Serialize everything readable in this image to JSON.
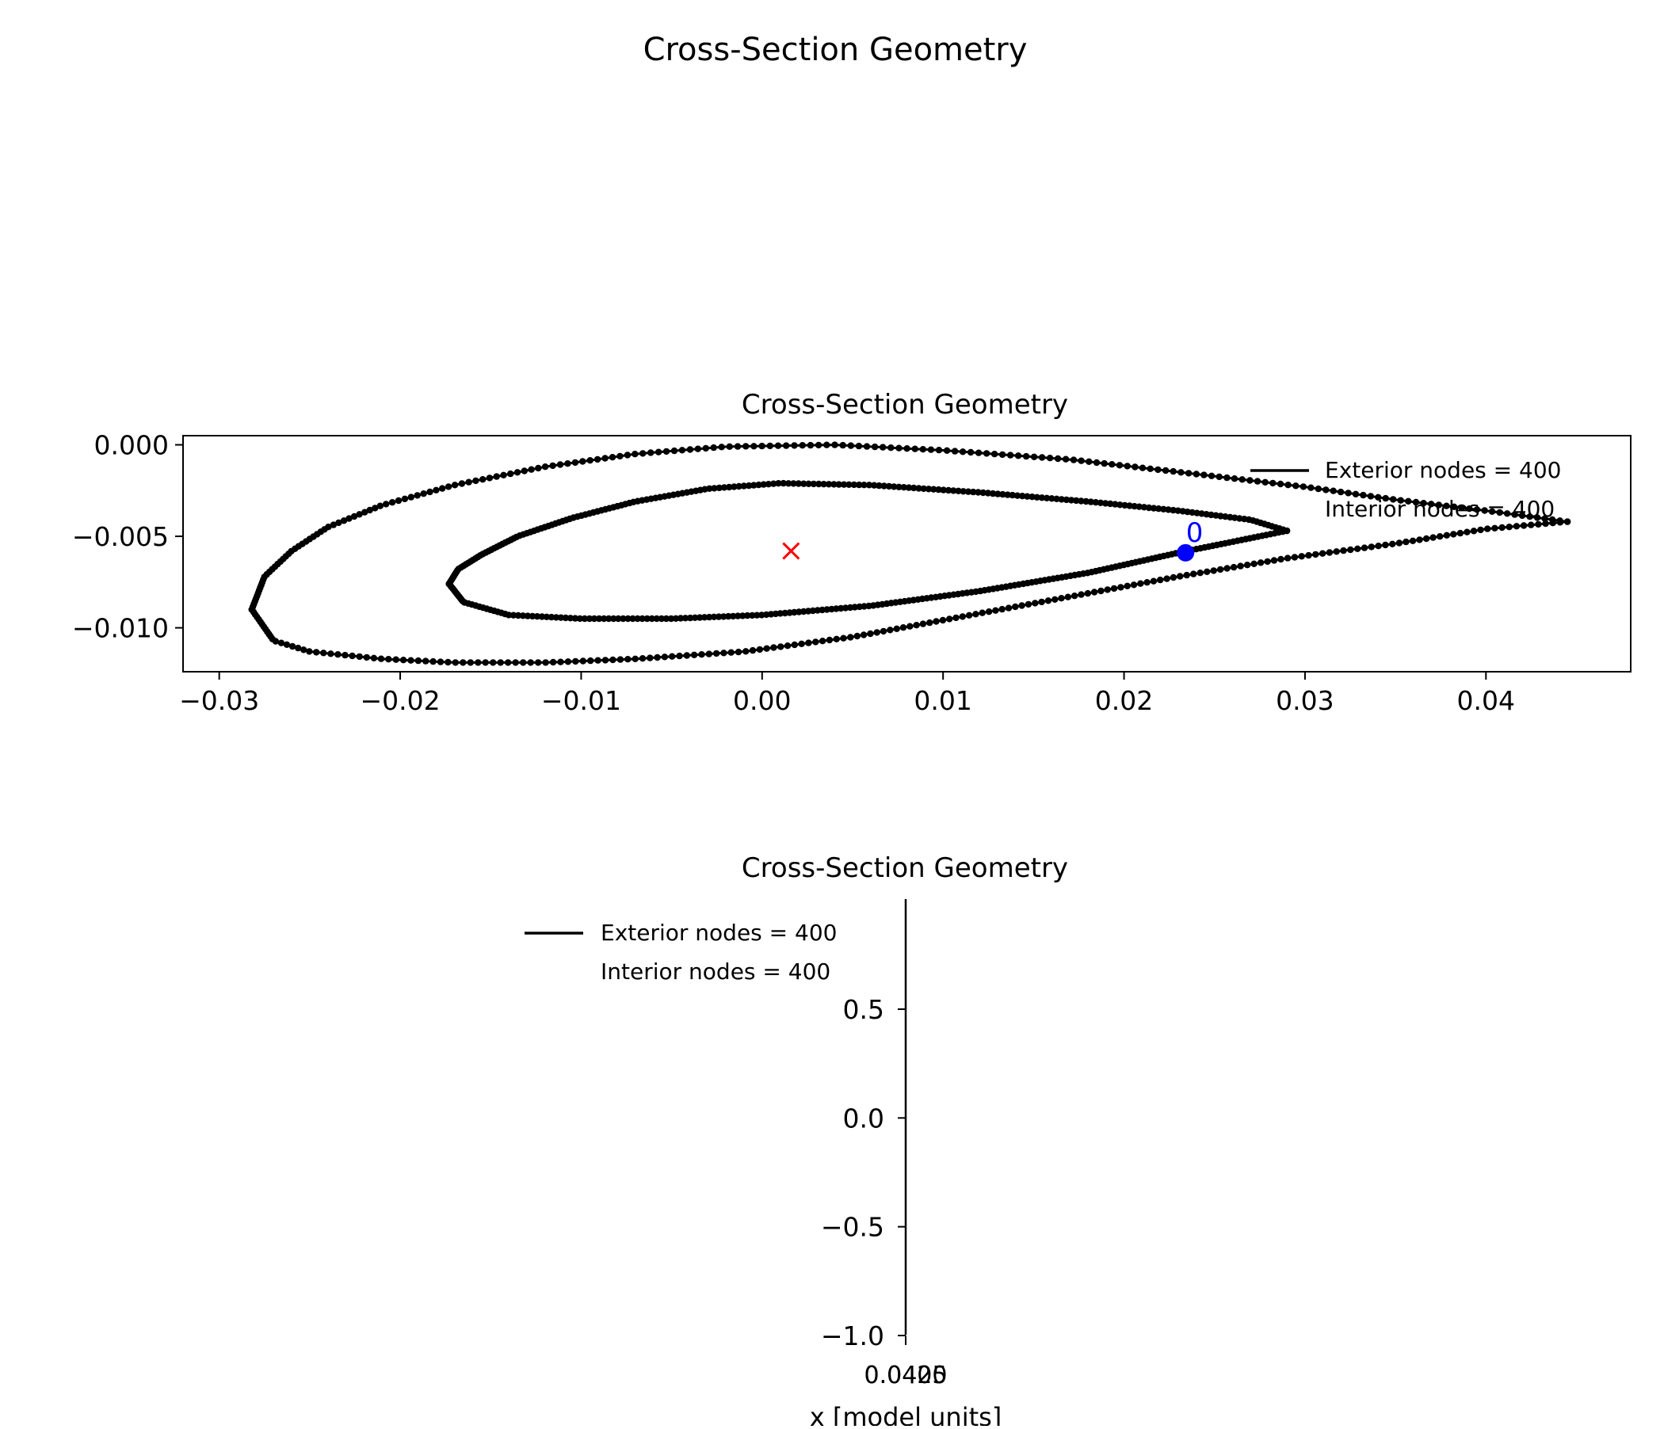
{
  "figure": {
    "suptitle": "Cross-Section Geometry"
  },
  "chart_data": [
    {
      "type": "line",
      "title": "Cross-Section Geometry",
      "xlabel": "",
      "ylabel": "",
      "xlim": [
        -0.032,
        0.048
      ],
      "ylim": [
        -0.0124,
        0.0005
      ],
      "xticks": [
        {
          "value": -0.03,
          "label": "−0.03"
        },
        {
          "value": -0.02,
          "label": "−0.02"
        },
        {
          "value": -0.01,
          "label": "−0.01"
        },
        {
          "value": 0.0,
          "label": "0.00"
        },
        {
          "value": 0.01,
          "label": "0.01"
        },
        {
          "value": 0.02,
          "label": "0.02"
        },
        {
          "value": 0.03,
          "label": "0.03"
        },
        {
          "value": 0.04,
          "label": "0.04"
        }
      ],
      "yticks": [
        {
          "value": 0.0,
          "label": "0.000"
        },
        {
          "value": -0.005,
          "label": "−0.005"
        },
        {
          "value": -0.01,
          "label": "−0.010"
        }
      ],
      "grid": false,
      "legend": {
        "placement": "upper-right",
        "entries": [
          "Exterior nodes = 400",
          "Interior nodes = 400"
        ]
      },
      "series": [
        {
          "name": "Exterior nodes = 400",
          "color": "#000000",
          "marker": "dot",
          "count": 400,
          "outline": {
            "upper": [
              [
                -0.0282,
                -0.009
              ],
              [
                -0.0275,
                -0.0072
              ],
              [
                -0.026,
                -0.0058
              ],
              [
                -0.024,
                -0.0045
              ],
              [
                -0.021,
                -0.0033
              ],
              [
                -0.017,
                -0.0022
              ],
              [
                -0.012,
                -0.0012
              ],
              [
                -0.007,
                -0.0005
              ],
              [
                -0.002,
                -0.0001
              ],
              [
                0.004,
                0.0
              ],
              [
                0.01,
                -0.0003
              ],
              [
                0.017,
                -0.0008
              ],
              [
                0.024,
                -0.0016
              ],
              [
                0.03,
                -0.0023
              ],
              [
                0.035,
                -0.003
              ],
              [
                0.04,
                -0.0036
              ],
              [
                0.0445,
                -0.0042
              ]
            ],
            "lower": [
              [
                -0.0282,
                -0.009
              ],
              [
                -0.027,
                -0.0107
              ],
              [
                -0.025,
                -0.0113
              ],
              [
                -0.021,
                -0.0117
              ],
              [
                -0.017,
                -0.0119
              ],
              [
                -0.012,
                -0.0119
              ],
              [
                -0.007,
                -0.0117
              ],
              [
                -0.001,
                -0.0113
              ],
              [
                0.005,
                -0.0105
              ],
              [
                0.011,
                -0.0094
              ],
              [
                0.017,
                -0.0083
              ],
              [
                0.023,
                -0.0072
              ],
              [
                0.029,
                -0.0062
              ],
              [
                0.035,
                -0.0054
              ],
              [
                0.04,
                -0.0046
              ],
              [
                0.0445,
                -0.0042
              ]
            ]
          }
        },
        {
          "name": "Interior nodes = 400",
          "color": "#000000",
          "marker": "dot",
          "count": 400,
          "outline": {
            "upper": [
              [
                -0.0173,
                -0.0076
              ],
              [
                -0.0168,
                -0.0068
              ],
              [
                -0.0155,
                -0.006
              ],
              [
                -0.0135,
                -0.005
              ],
              [
                -0.0105,
                -0.004
              ],
              [
                -0.007,
                -0.0031
              ],
              [
                -0.003,
                -0.0024
              ],
              [
                0.001,
                -0.0021
              ],
              [
                0.006,
                -0.0022
              ],
              [
                0.012,
                -0.0026
              ],
              [
                0.018,
                -0.0031
              ],
              [
                0.023,
                -0.0036
              ],
              [
                0.027,
                -0.0041
              ],
              [
                0.029,
                -0.0047
              ]
            ],
            "lower": [
              [
                -0.0173,
                -0.0076
              ],
              [
                -0.0165,
                -0.0086
              ],
              [
                -0.014,
                -0.0093
              ],
              [
                -0.01,
                -0.0095
              ],
              [
                -0.005,
                -0.0095
              ],
              [
                0.0,
                -0.0093
              ],
              [
                0.006,
                -0.0088
              ],
              [
                0.012,
                -0.008
              ],
              [
                0.018,
                -0.007
              ],
              [
                0.023,
                -0.0059
              ],
              [
                0.026,
                -0.0053
              ],
              [
                0.029,
                -0.0047
              ]
            ]
          }
        }
      ],
      "annotations": [
        {
          "kind": "cross",
          "color": "#ff0000",
          "x": 0.0016,
          "y": -0.0058
        },
        {
          "kind": "filled-circle",
          "color": "#0000ff",
          "x": 0.0234,
          "y": -0.0059
        },
        {
          "kind": "text",
          "color": "#0000ff",
          "x": 0.0239,
          "y": -0.0053,
          "text": "0"
        }
      ]
    },
    {
      "type": "line",
      "title": "Cross-Section Geometry",
      "xlabel": "x [model units]",
      "ylabel": "",
      "ylim": [
        -1.0,
        1.0
      ],
      "yticks": [
        {
          "value": 0.5,
          "label": "0.5"
        },
        {
          "value": 0.0,
          "label": "0.0"
        },
        {
          "value": -0.5,
          "label": "−0.5"
        },
        {
          "value": -1.0,
          "label": "−1.0"
        }
      ],
      "xtick_labels": [
        "0.0425",
        "0.0400"
      ],
      "grid": false,
      "legend": {
        "placement": "upper-left",
        "entries": [
          "Exterior nodes = 400",
          "Interior nodes = 400"
        ]
      }
    }
  ]
}
